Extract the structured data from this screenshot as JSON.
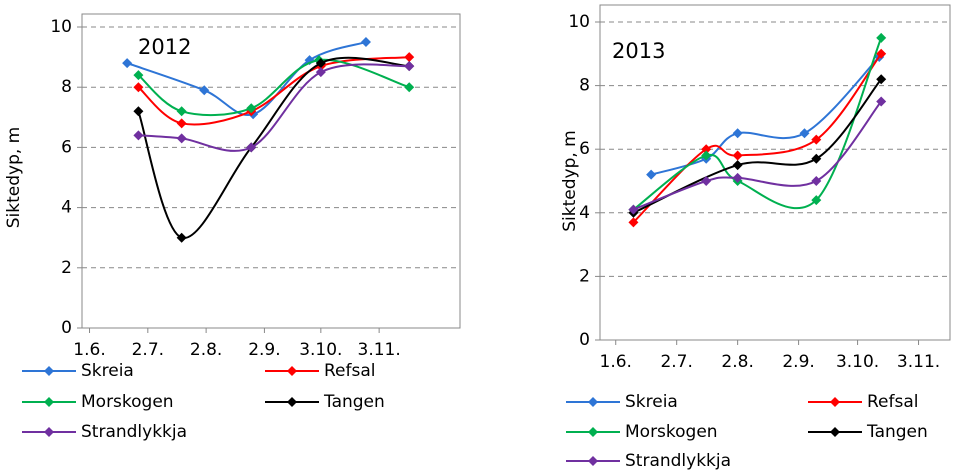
{
  "chart_data": [
    {
      "type": "line",
      "annotation": "2012",
      "y_label": "Siktedyp, m",
      "xlim": [
        -4,
        197
      ],
      "ylim": [
        0,
        10
      ],
      "xticks": [
        {
          "value": 0,
          "label": "1.6."
        },
        {
          "value": 31,
          "label": "2.7."
        },
        {
          "value": 62,
          "label": "2.8."
        },
        {
          "value": 93,
          "label": "2.9."
        },
        {
          "value": 123,
          "label": "3.10."
        },
        {
          "value": 154,
          "label": "3.11."
        }
      ],
      "yticks": [
        0,
        2,
        4,
        6,
        8,
        10
      ],
      "grid": true,
      "smooth": true,
      "series": [
        {
          "name": "Skreia",
          "color": "#2e75d6",
          "x": [
            20,
            61,
            87,
            117,
            147
          ],
          "values": [
            8.8,
            7.9,
            7.1,
            8.9,
            9.5
          ]
        },
        {
          "name": "Refsal",
          "color": "#ff0000",
          "x": [
            26,
            49,
            86,
            123,
            170
          ],
          "values": [
            8.0,
            6.8,
            7.2,
            8.7,
            9.0
          ]
        },
        {
          "name": "Morskogen",
          "color": "#00b050",
          "x": [
            26,
            49,
            86,
            122,
            170
          ],
          "values": [
            8.4,
            7.2,
            7.3,
            8.9,
            8.0
          ]
        },
        {
          "name": "Tangen",
          "color": "#000000",
          "x": [
            26,
            49,
            86,
            123,
            170
          ],
          "values": [
            7.2,
            3.0,
            6.0,
            8.8,
            8.7
          ]
        },
        {
          "name": "Strandlykkja",
          "color": "#7030a0",
          "x": [
            26,
            49,
            86,
            123,
            170
          ],
          "values": [
            6.4,
            6.3,
            6.0,
            8.5,
            8.7
          ]
        }
      ]
    },
    {
      "type": "line",
      "annotation": "2013",
      "y_label": "Siktedyp, m",
      "xlim": [
        -8,
        170
      ],
      "ylim": [
        0,
        10
      ],
      "xticks": [
        {
          "value": 0,
          "label": "1.6."
        },
        {
          "value": 31,
          "label": "2.7."
        },
        {
          "value": 62,
          "label": "2.8."
        },
        {
          "value": 93,
          "label": "2.9."
        },
        {
          "value": 123,
          "label": "3.10."
        },
        {
          "value": 154,
          "label": "3.11."
        }
      ],
      "yticks": [
        0,
        2,
        4,
        6,
        8,
        10
      ],
      "grid": true,
      "smooth": true,
      "series": [
        {
          "name": "Skreia",
          "color": "#2e75d6",
          "x": [
            18,
            46,
            62,
            96,
            134
          ],
          "values": [
            5.2,
            5.7,
            6.5,
            6.5,
            8.9
          ]
        },
        {
          "name": "Refsal",
          "color": "#ff0000",
          "x": [
            9,
            46,
            62,
            102,
            135
          ],
          "values": [
            3.7,
            6.0,
            5.8,
            6.3,
            9.0
          ]
        },
        {
          "name": "Morskogen",
          "color": "#00b050",
          "x": [
            9,
            46,
            62,
            102,
            135
          ],
          "values": [
            4.1,
            5.8,
            5.0,
            4.4,
            9.5
          ]
        },
        {
          "name": "Tangen",
          "color": "#000000",
          "x": [
            9,
            62,
            102,
            135
          ],
          "values": [
            4.0,
            5.5,
            5.7,
            8.2
          ]
        },
        {
          "name": "Strandlykkja",
          "color": "#7030a0",
          "x": [
            9,
            46,
            62,
            102,
            135
          ],
          "values": [
            4.1,
            5.0,
            5.1,
            5.0,
            7.5
          ]
        }
      ]
    }
  ]
}
